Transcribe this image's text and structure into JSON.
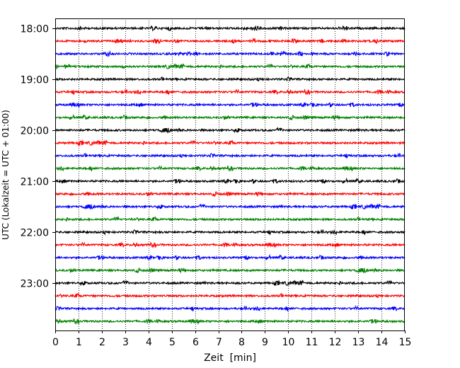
{
  "chart_data": {
    "type": "line",
    "title": "",
    "xlabel": "Zeit  [min]",
    "ylabel": "UTC (Lokalzeit = UTC + 01:00)",
    "xlim": [
      0,
      15
    ],
    "x_ticks": [
      "0",
      "1",
      "2",
      "3",
      "4",
      "5",
      "6",
      "7",
      "8",
      "9",
      "10",
      "11",
      "12",
      "13",
      "14",
      "15"
    ],
    "y_ticks": [
      "18:00",
      "19:00",
      "20:00",
      "21:00",
      "22:00",
      "23:00"
    ],
    "grid": "vertical dotted",
    "trace_interval_min": 15,
    "trace_colors": [
      "#000000",
      "#ff0000",
      "#0000ff",
      "#008000"
    ],
    "series": [
      {
        "start": "18:00",
        "color": "#000000"
      },
      {
        "start": "18:15",
        "color": "#ff0000"
      },
      {
        "start": "18:30",
        "color": "#0000ff"
      },
      {
        "start": "18:45",
        "color": "#008000"
      },
      {
        "start": "19:00",
        "color": "#000000"
      },
      {
        "start": "19:15",
        "color": "#ff0000"
      },
      {
        "start": "19:30",
        "color": "#0000ff"
      },
      {
        "start": "19:45",
        "color": "#008000"
      },
      {
        "start": "20:00",
        "color": "#000000"
      },
      {
        "start": "20:15",
        "color": "#ff0000"
      },
      {
        "start": "20:30",
        "color": "#0000ff"
      },
      {
        "start": "20:45",
        "color": "#008000"
      },
      {
        "start": "21:00",
        "color": "#000000"
      },
      {
        "start": "21:15",
        "color": "#ff0000"
      },
      {
        "start": "21:30",
        "color": "#0000ff"
      },
      {
        "start": "21:45",
        "color": "#008000"
      },
      {
        "start": "22:00",
        "color": "#000000"
      },
      {
        "start": "22:15",
        "color": "#ff0000"
      },
      {
        "start": "22:30",
        "color": "#0000ff"
      },
      {
        "start": "22:45",
        "color": "#008000"
      },
      {
        "start": "23:00",
        "color": "#000000"
      },
      {
        "start": "23:15",
        "color": "#ff0000"
      },
      {
        "start": "23:30",
        "color": "#0000ff"
      },
      {
        "start": "23:45",
        "color": "#008000"
      }
    ]
  }
}
